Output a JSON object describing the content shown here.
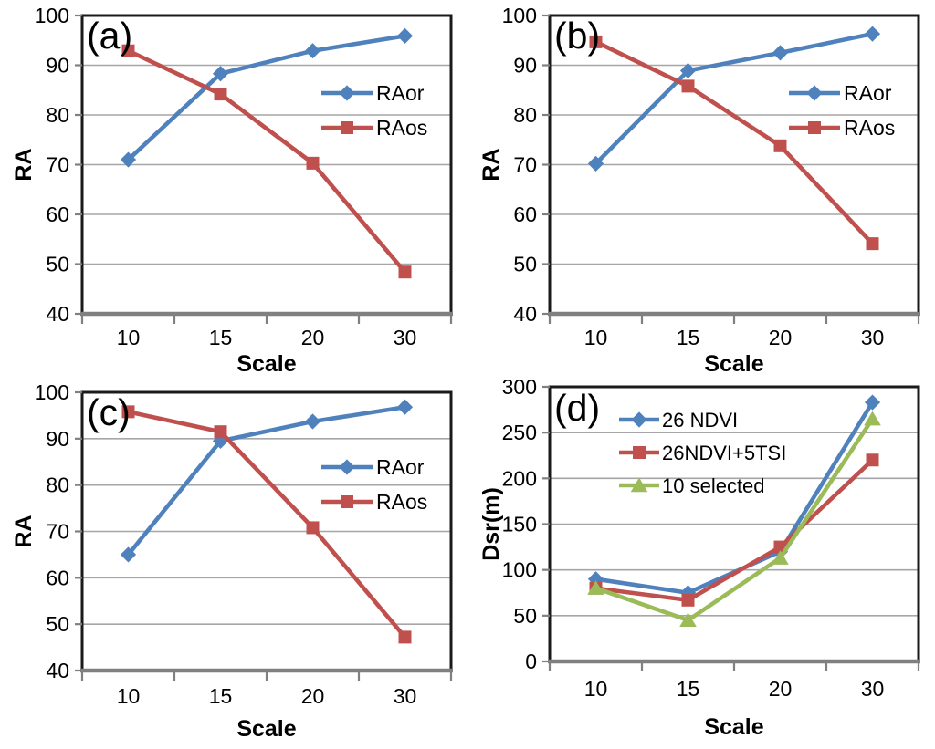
{
  "figure": {
    "background": "#ffffff",
    "panel_letters": [
      "(a)",
      "(b)",
      "(c)",
      "(d)"
    ]
  },
  "colors": {
    "series_blue": "#4F81BD",
    "series_red": "#C0504D",
    "series_green": "#9BBB59",
    "gridline": "#A6A6A6",
    "x_axis": "#808080",
    "plot_border": "#1a1a1a",
    "text": "#000000"
  },
  "chart_data": [
    {
      "id": "a",
      "panel_label": "(a)",
      "type": "line",
      "xlabel": "Scale",
      "ylabel": "RA",
      "categories": [
        "10",
        "15",
        "20",
        "30"
      ],
      "ylim": [
        40,
        100
      ],
      "yticks": [
        40,
        50,
        60,
        70,
        80,
        90,
        100
      ],
      "grid": true,
      "legend_position": "right-middle",
      "series": [
        {
          "name": "RAor",
          "marker": "diamond",
          "color": "#4F81BD",
          "values": [
            71.0,
            88.3,
            92.9,
            95.9
          ]
        },
        {
          "name": "RAos",
          "marker": "square",
          "color": "#C0504D",
          "values": [
            92.9,
            84.2,
            70.3,
            48.4
          ]
        }
      ]
    },
    {
      "id": "b",
      "panel_label": "(b)",
      "type": "line",
      "xlabel": "Scale",
      "ylabel": "RA",
      "categories": [
        "10",
        "15",
        "20",
        "30"
      ],
      "ylim": [
        40,
        100
      ],
      "yticks": [
        40,
        50,
        60,
        70,
        80,
        90,
        100
      ],
      "grid": true,
      "legend_position": "right-middle",
      "series": [
        {
          "name": "RAor",
          "marker": "diamond",
          "color": "#4F81BD",
          "values": [
            70.2,
            88.9,
            92.5,
            96.3
          ]
        },
        {
          "name": "RAos",
          "marker": "square",
          "color": "#C0504D",
          "values": [
            94.7,
            85.8,
            73.8,
            54.1
          ]
        }
      ]
    },
    {
      "id": "c",
      "panel_label": "(c)",
      "type": "line",
      "xlabel": "Scale",
      "ylabel": "RA",
      "categories": [
        "10",
        "15",
        "20",
        "30"
      ],
      "ylim": [
        40,
        100
      ],
      "yticks": [
        40,
        50,
        60,
        70,
        80,
        90,
        100
      ],
      "grid": true,
      "legend_position": "right-middle",
      "series": [
        {
          "name": "RAor",
          "marker": "diamond",
          "color": "#4F81BD",
          "values": [
            65.0,
            89.5,
            93.7,
            96.8
          ]
        },
        {
          "name": "RAos",
          "marker": "square",
          "color": "#C0504D",
          "values": [
            95.8,
            91.5,
            70.8,
            47.2
          ]
        }
      ]
    },
    {
      "id": "d",
      "panel_label": "(d)",
      "type": "line",
      "xlabel": "Scale",
      "ylabel": "Dsr(m)",
      "categories": [
        "10",
        "15",
        "20",
        "30"
      ],
      "ylim": [
        0,
        300
      ],
      "yticks": [
        0,
        50,
        100,
        150,
        200,
        250,
        300
      ],
      "grid": true,
      "legend_position": "top-left",
      "series": [
        {
          "name": "26 NDVI",
          "marker": "diamond",
          "color": "#4F81BD",
          "values": [
            90,
            75,
            120,
            283
          ]
        },
        {
          "name": "26NDVI+5TSI",
          "marker": "square",
          "color": "#C0504D",
          "values": [
            80,
            67,
            125,
            220
          ]
        },
        {
          "name": "10 selected",
          "marker": "triangle",
          "color": "#9BBB59",
          "values": [
            80,
            45,
            113,
            265
          ]
        }
      ]
    }
  ]
}
